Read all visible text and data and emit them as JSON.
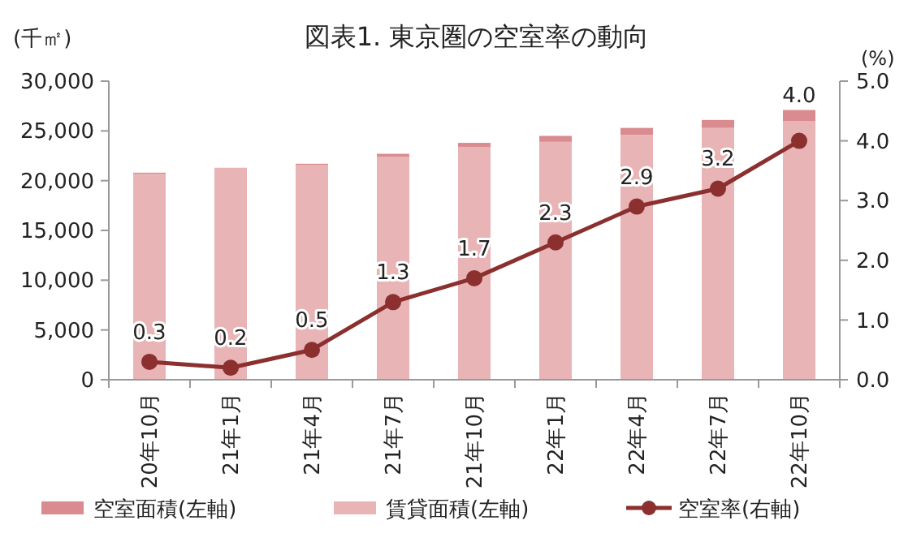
{
  "chart_data": {
    "type": "bar",
    "title": "図表1.  東京圏の空室率の動向",
    "ylabel": "(千㎡)",
    "y2label": "(%)",
    "categories": [
      "20年10月",
      "21年1月",
      "21年4月",
      "21年7月",
      "21年10月",
      "22年1月",
      "22年4月",
      "22年7月",
      "22年10月"
    ],
    "stacked": true,
    "series": [
      {
        "name": "賃貸面積(左軸)",
        "color": "#e8b4b6",
        "values": [
          20700,
          21300,
          21600,
          22400,
          23400,
          23900,
          24600,
          25300,
          26000
        ]
      },
      {
        "name": "空室面積(左軸)",
        "color": "#d98b8f",
        "values": [
          100,
          0,
          100,
          300,
          400,
          600,
          700,
          800,
          1100
        ]
      },
      {
        "name": "空室率(右軸)",
        "type": "line",
        "axis": "y2",
        "color": "#8b2f2f",
        "marker": "circle",
        "values": [
          0.3,
          0.2,
          0.5,
          1.3,
          1.7,
          2.3,
          2.9,
          3.2,
          4.0
        ],
        "value_labels": [
          "0.3",
          "0.2",
          "0.5",
          "1.3",
          "1.7",
          "2.3",
          "2.9",
          "3.2",
          "4.0"
        ]
      }
    ],
    "ylim": [
      0,
      30000
    ],
    "yticks": [
      {
        "value": 0,
        "label": "0"
      },
      {
        "value": 5000,
        "label": "5,000"
      },
      {
        "value": 10000,
        "label": "10,000"
      },
      {
        "value": 15000,
        "label": "15,000"
      },
      {
        "value": 20000,
        "label": "20,000"
      },
      {
        "value": 25000,
        "label": "25,000"
      },
      {
        "value": 30000,
        "label": "30,000"
      }
    ],
    "y2lim": [
      0,
      5
    ],
    "y2ticks": [
      {
        "value": 0,
        "label": "0.0"
      },
      {
        "value": 1,
        "label": "1.0"
      },
      {
        "value": 2,
        "label": "2.0"
      },
      {
        "value": 3,
        "label": "3.0"
      },
      {
        "value": 4,
        "label": "4.0"
      },
      {
        "value": 5,
        "label": "5.0"
      }
    ],
    "grid": false,
    "legend": "bottom"
  }
}
